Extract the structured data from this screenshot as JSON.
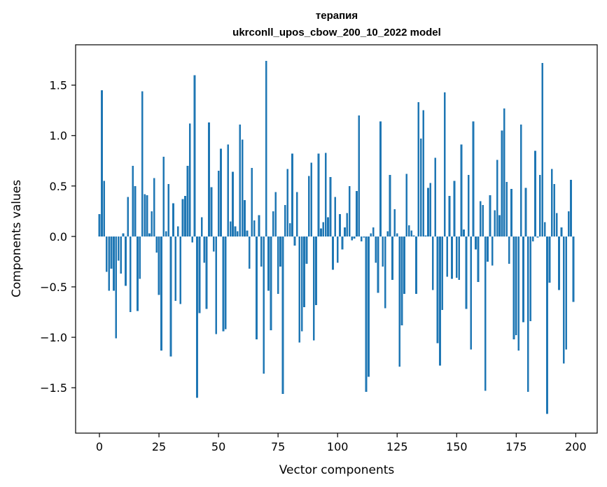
{
  "chart_data": {
    "type": "bar",
    "title_line1": "терапия",
    "title_line2": "ukrconll_upos_cbow_200_10_2022 model",
    "xlabel": "Vector components",
    "ylabel": "Components values",
    "bar_color": "#1f77b4",
    "xlim": [
      -10,
      209
    ],
    "ylim": [
      -1.95,
      1.9
    ],
    "x_ticks": [
      0,
      25,
      50,
      75,
      100,
      125,
      150,
      175,
      200
    ],
    "x_tick_labels": [
      "0",
      "25",
      "50",
      "75",
      "100",
      "125",
      "150",
      "175",
      "200"
    ],
    "y_ticks": [
      -1.5,
      -1.0,
      -0.5,
      0.0,
      0.5,
      1.0,
      1.5
    ],
    "y_tick_labels": [
      "−1.5",
      "−1.0",
      "−0.5",
      "0.0",
      "0.5",
      "1.0",
      "1.5"
    ],
    "grid": false,
    "x": [
      0,
      1,
      2,
      3,
      4,
      5,
      6,
      7,
      8,
      9,
      10,
      11,
      12,
      13,
      14,
      15,
      16,
      17,
      18,
      19,
      20,
      21,
      22,
      23,
      24,
      25,
      26,
      27,
      28,
      29,
      30,
      31,
      32,
      33,
      34,
      35,
      36,
      37,
      38,
      39,
      40,
      41,
      42,
      43,
      44,
      45,
      46,
      47,
      48,
      49,
      50,
      51,
      52,
      53,
      54,
      55,
      56,
      57,
      58,
      59,
      60,
      61,
      62,
      63,
      64,
      65,
      66,
      67,
      68,
      69,
      70,
      71,
      72,
      73,
      74,
      75,
      76,
      77,
      78,
      79,
      80,
      81,
      82,
      83,
      84,
      85,
      86,
      87,
      88,
      89,
      90,
      91,
      92,
      93,
      94,
      95,
      96,
      97,
      98,
      99,
      100,
      101,
      102,
      103,
      104,
      105,
      106,
      107,
      108,
      109,
      110,
      111,
      112,
      113,
      114,
      115,
      116,
      117,
      118,
      119,
      120,
      121,
      122,
      123,
      124,
      125,
      126,
      127,
      128,
      129,
      130,
      131,
      132,
      133,
      134,
      135,
      136,
      137,
      138,
      139,
      140,
      141,
      142,
      143,
      144,
      145,
      146,
      147,
      148,
      149,
      150,
      151,
      152,
      153,
      154,
      155,
      156,
      157,
      158,
      159,
      160,
      161,
      162,
      163,
      164,
      165,
      166,
      167,
      168,
      169,
      170,
      171,
      172,
      173,
      174,
      175,
      176,
      177,
      178,
      179,
      180,
      181,
      182,
      183,
      184,
      185,
      186,
      187,
      188,
      189,
      190,
      191,
      192,
      193,
      194,
      195,
      196,
      197,
      198,
      199
    ],
    "values": [
      0.22,
      1.45,
      0.55,
      -0.35,
      -0.54,
      -0.32,
      -0.54,
      -1.01,
      -0.24,
      -0.37,
      0.03,
      -0.49,
      0.39,
      -0.75,
      0.7,
      0.5,
      -0.74,
      -0.42,
      1.44,
      0.42,
      0.41,
      0.03,
      0.25,
      0.58,
      -0.16,
      -0.58,
      -1.13,
      0.79,
      0.05,
      0.52,
      -1.19,
      0.33,
      -0.64,
      0.1,
      -0.67,
      0.37,
      0.4,
      0.7,
      1.12,
      -0.06,
      1.6,
      -1.6,
      -0.76,
      0.19,
      -0.26,
      -0.72,
      1.13,
      0.49,
      -0.15,
      -0.97,
      0.65,
      0.87,
      -0.94,
      -0.92,
      0.91,
      0.15,
      0.64,
      0.1,
      0.05,
      1.11,
      0.96,
      0.36,
      0.06,
      -0.32,
      0.68,
      0.16,
      -1.02,
      0.21,
      -0.3,
      -1.36,
      1.74,
      -0.54,
      -0.93,
      0.25,
      0.44,
      -0.57,
      -0.3,
      -1.56,
      0.31,
      0.67,
      0.13,
      0.82,
      -0.09,
      0.44,
      -1.05,
      -0.94,
      -0.7,
      -0.27,
      0.6,
      0.73,
      -1.03,
      -0.68,
      0.82,
      0.08,
      0.14,
      0.83,
      0.19,
      0.59,
      -0.33,
      0.39,
      -0.26,
      0.22,
      -0.13,
      0.09,
      0.23,
      0.5,
      -0.04,
      -0.02,
      0.45,
      1.2,
      -0.05,
      -0.01,
      -1.54,
      -1.39,
      0.03,
      0.09,
      -0.26,
      -0.56,
      1.14,
      -0.3,
      -0.71,
      0.05,
      0.61,
      -0.43,
      0.27,
      0.03,
      -1.29,
      -0.88,
      -0.57,
      0.62,
      0.11,
      0.06,
      0.01,
      -0.57,
      1.33,
      0.97,
      1.25,
      0.01,
      0.48,
      0.53,
      -0.53,
      0.78,
      -1.06,
      -1.28,
      -0.73,
      1.43,
      -0.4,
      0.4,
      -0.42,
      0.55,
      -0.41,
      -0.43,
      0.91,
      0.07,
      -0.72,
      0.61,
      -1.12,
      1.14,
      -0.13,
      -0.45,
      0.35,
      0.31,
      -1.53,
      -0.25,
      0.41,
      -0.29,
      0.26,
      0.76,
      0.21,
      1.05,
      1.27,
      0.54,
      -0.27,
      0.47,
      -1.02,
      -0.98,
      -1.13,
      1.11,
      -0.85,
      0.48,
      -1.54,
      -0.84,
      -0.05,
      0.85,
      -0.01,
      0.61,
      1.72,
      0.14,
      -1.76,
      -0.46,
      0.67,
      0.52,
      0.23,
      -0.53,
      0.09,
      -1.26,
      -1.12,
      0.25,
      0.56,
      -0.65
    ]
  }
}
